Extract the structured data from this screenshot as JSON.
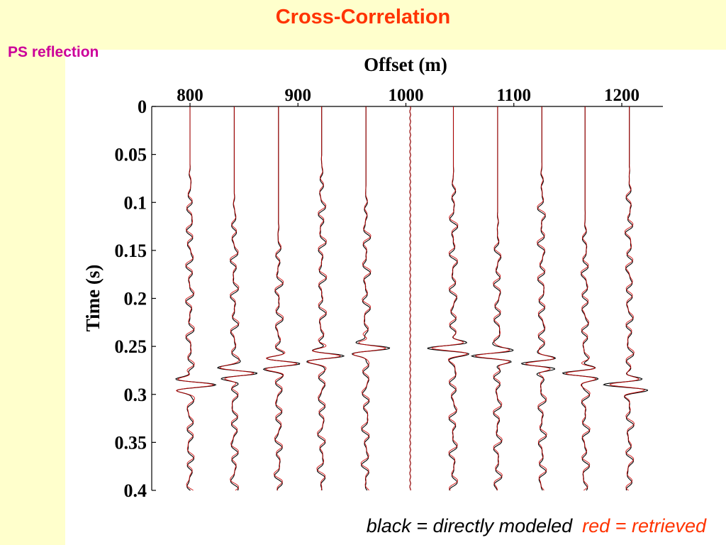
{
  "slide": {
    "title": "Cross-Correlation",
    "subtitle": "PS reflection"
  },
  "legend": {
    "black_text": "black = directly modeled",
    "red_text": "red = retrieved"
  },
  "colors": {
    "title": "#ff3300",
    "subtitle": "#cc0099",
    "background": "#ffffcc",
    "modeled_trace": "#000000",
    "retrieved_trace": "#cc0000"
  },
  "chart_data": {
    "type": "line",
    "subtype": "seismic-wiggle-gather",
    "xlabel": "Offset (m)",
    "ylabel": "Time (s)",
    "x_axis_position": "top",
    "y_inverted": true,
    "xlim": [
      755,
      1245
    ],
    "ylim": [
      0,
      0.4
    ],
    "x_ticks": [
      800,
      900,
      1000,
      1100,
      1200
    ],
    "x_tick_labels": [
      "800",
      "900",
      "1000",
      "1100",
      "1200"
    ],
    "y_ticks": [
      0,
      0.05,
      0.1,
      0.15,
      0.2,
      0.25,
      0.3,
      0.35,
      0.4
    ],
    "y_tick_labels": [
      "0",
      "0.05",
      "0.1",
      "0.15",
      "0.2",
      "0.25",
      "0.3",
      "0.35",
      "0.4"
    ],
    "grid": false,
    "trace_offsets": [
      800,
      841,
      882,
      922,
      963,
      1004,
      1044,
      1085,
      1126,
      1166,
      1207
    ],
    "event_times": [
      0.29,
      0.278,
      0.268,
      0.26,
      0.252,
      null,
      0.252,
      0.26,
      0.268,
      0.278,
      0.29
    ],
    "series": [
      {
        "name": "black = directly modeled"
      },
      {
        "name": "red = retrieved"
      }
    ]
  }
}
